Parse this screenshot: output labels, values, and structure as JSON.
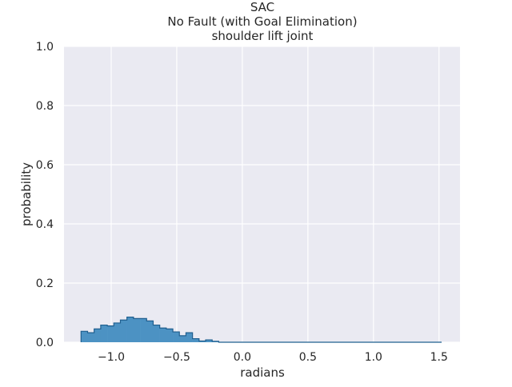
{
  "chart_data": {
    "type": "histogram",
    "title_lines": [
      "SAC",
      "No Fault (with Goal Elimination)",
      "shoulder lift joint"
    ],
    "xlabel": "radians",
    "ylabel": "probability",
    "xlim": [
      -1.36,
      1.66
    ],
    "ylim": [
      0.0,
      1.0
    ],
    "x_ticks": [
      {
        "value": -1.0,
        "label": "−1.0"
      },
      {
        "value": -0.5,
        "label": "−0.5"
      },
      {
        "value": 0.0,
        "label": "0.0"
      },
      {
        "value": 0.5,
        "label": "0.5"
      },
      {
        "value": 1.0,
        "label": "1.0"
      },
      {
        "value": 1.5,
        "label": "1.5"
      }
    ],
    "y_ticks": [
      {
        "value": 0.0,
        "label": "0.0"
      },
      {
        "value": 0.2,
        "label": "0.2"
      },
      {
        "value": 0.4,
        "label": "0.4"
      },
      {
        "value": 0.6,
        "label": "0.6"
      },
      {
        "value": 0.8,
        "label": "0.8"
      },
      {
        "value": 1.0,
        "label": "1.0"
      }
    ],
    "bin_start": -1.23,
    "bin_width": 0.05,
    "bin_values": [
      0.037,
      0.032,
      0.045,
      0.058,
      0.055,
      0.065,
      0.075,
      0.085,
      0.08,
      0.08,
      0.072,
      0.058,
      0.048,
      0.045,
      0.035,
      0.022,
      0.032,
      0.012,
      0.004,
      0.008,
      0.003,
      0.0,
      0.0,
      0.0,
      0.0,
      0.0,
      0.0,
      0.0,
      0.0,
      0.0,
      0.0,
      0.0,
      0.0,
      0.0,
      0.0,
      0.0,
      0.0,
      0.0,
      0.0,
      0.0,
      0.0,
      0.0,
      0.0,
      0.0,
      0.0,
      0.0,
      0.0,
      0.0,
      0.0,
      0.0,
      0.0,
      0.0,
      0.0,
      0.0,
      0.0
    ],
    "colors": {
      "plot_background": "#eaeaf2",
      "grid": "#ffffff",
      "bar_fill": "#4c92c3",
      "bar_edge": "#1f5f8f"
    }
  }
}
